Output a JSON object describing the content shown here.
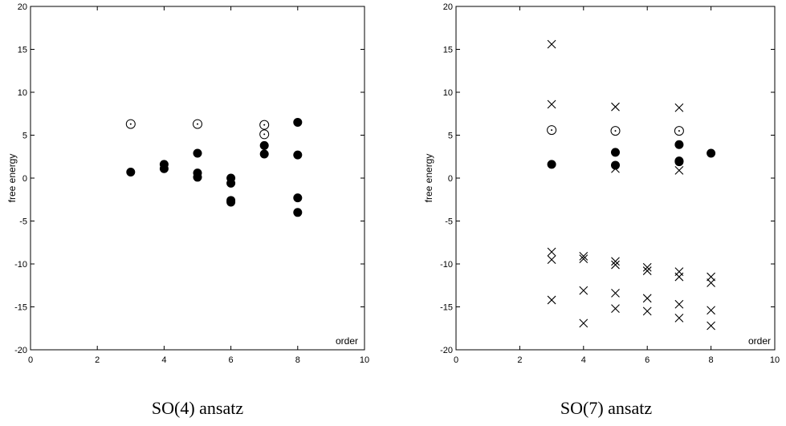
{
  "chart_data": [
    {
      "type": "scatter",
      "caption": "SO(4) ansatz",
      "xlabel": "order",
      "ylabel": "free energy",
      "xlim": [
        0,
        10
      ],
      "ylim": [
        -20,
        20
      ],
      "xticks": [
        "0",
        "2",
        "4",
        "6",
        "8",
        "10"
      ],
      "yticks": [
        "-20",
        "-15",
        "-10",
        "-5",
        "0",
        "5",
        "10",
        "15",
        "20"
      ],
      "grid": false,
      "series": [
        {
          "marker": "filled-circle",
          "points": [
            [
              3,
              0.7
            ],
            [
              4,
              1.1
            ],
            [
              4,
              1.6
            ],
            [
              5,
              0.1
            ],
            [
              5,
              0.6
            ],
            [
              5,
              2.9
            ],
            [
              6,
              0.0
            ],
            [
              6,
              -0.6
            ],
            [
              6,
              -2.6
            ],
            [
              6,
              -2.8
            ],
            [
              7,
              2.8
            ],
            [
              7,
              3.8
            ],
            [
              8,
              6.5
            ],
            [
              8,
              2.7
            ],
            [
              8,
              -2.3
            ],
            [
              8,
              -4.0
            ]
          ]
        },
        {
          "marker": "open-circle",
          "points": [
            [
              3,
              6.3
            ],
            [
              5,
              6.3
            ],
            [
              7,
              6.2
            ],
            [
              7,
              5.1
            ]
          ]
        }
      ]
    },
    {
      "type": "scatter",
      "caption": "SO(7) ansatz",
      "xlabel": "order",
      "ylabel": "free energy",
      "xlim": [
        0,
        10
      ],
      "ylim": [
        -20,
        20
      ],
      "xticks": [
        "0",
        "2",
        "4",
        "6",
        "8",
        "10"
      ],
      "yticks": [
        "-20",
        "-15",
        "-10",
        "-5",
        "0",
        "5",
        "10",
        "15",
        "20"
      ],
      "grid": false,
      "series": [
        {
          "marker": "filled-circle",
          "points": [
            [
              3,
              1.6
            ],
            [
              5,
              3.0
            ],
            [
              5,
              1.5
            ],
            [
              7,
              3.9
            ],
            [
              7,
              1.9
            ],
            [
              7,
              2.0
            ],
            [
              8,
              2.9
            ]
          ]
        },
        {
          "marker": "open-circle",
          "points": [
            [
              3,
              5.6
            ],
            [
              5,
              5.5
            ],
            [
              7,
              5.5
            ]
          ]
        },
        {
          "marker": "cross",
          "points": [
            [
              3,
              15.6
            ],
            [
              3,
              8.6
            ],
            [
              3,
              -8.6
            ],
            [
              3,
              -9.5
            ],
            [
              3,
              -14.2
            ],
            [
              4,
              -9.1
            ],
            [
              4,
              -9.4
            ],
            [
              4,
              -13.1
            ],
            [
              4,
              -16.9
            ],
            [
              5,
              8.3
            ],
            [
              5,
              1.1
            ],
            [
              5,
              -9.7
            ],
            [
              5,
              -10.1
            ],
            [
              5,
              -13.4
            ],
            [
              5,
              -15.2
            ],
            [
              6,
              -10.4
            ],
            [
              6,
              -10.8
            ],
            [
              6,
              -14.0
            ],
            [
              6,
              -15.5
            ],
            [
              7,
              8.2
            ],
            [
              7,
              0.9
            ],
            [
              7,
              -10.9
            ],
            [
              7,
              -11.5
            ],
            [
              7,
              -14.7
            ],
            [
              7,
              -16.3
            ],
            [
              8,
              -11.5
            ],
            [
              8,
              -12.2
            ],
            [
              8,
              -15.4
            ],
            [
              8,
              -17.2
            ]
          ]
        }
      ]
    }
  ]
}
